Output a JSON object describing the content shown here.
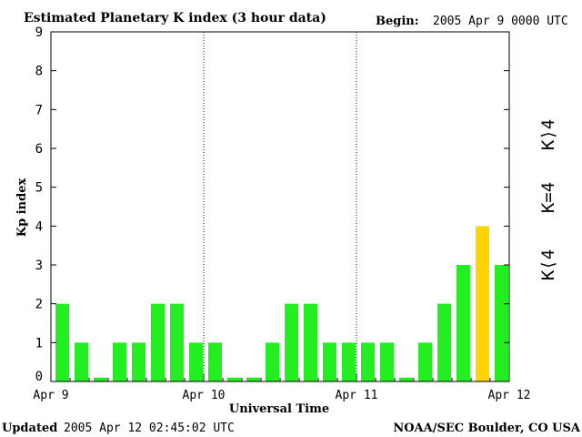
{
  "header": {
    "title": "Estimated Planetary K index (3 hour data)",
    "begin_label": "Begin:",
    "begin_value": "2005 Apr 9 0000 UTC"
  },
  "footer": {
    "updated_label": "Updated",
    "updated_value": "2005 Apr 12 02:45:02 UTC",
    "credit": "NOAA/SEC Boulder, CO USA"
  },
  "legend": {
    "above": "K⟩4",
    "equal": "K=4",
    "below": "K⟨4"
  },
  "colors": {
    "below": "#22ee22",
    "equal": "#ffd400",
    "above": "#ff3300",
    "axis": "#000000"
  },
  "chart_data": {
    "type": "bar",
    "title": "Estimated Planetary K index (3 hour data)",
    "xlabel": "Universal Time",
    "ylabel": "Kp index",
    "ylim": [
      0,
      9
    ],
    "yticks": [
      "0",
      "1",
      "2",
      "3",
      "4",
      "5",
      "6",
      "7",
      "8",
      "9"
    ],
    "xticks": [
      "Apr 9",
      "Apr 10",
      "Apr 11",
      "Apr 12"
    ],
    "day_dividers": [
      "Apr 10",
      "Apr 11"
    ],
    "bars_per_day": 8,
    "values": [
      2,
      1,
      0.1,
      1,
      1,
      2,
      2,
      1,
      1,
      0.1,
      0.1,
      1,
      2,
      2,
      1,
      1,
      1,
      1,
      0.1,
      1,
      2,
      3,
      4,
      3
    ]
  }
}
